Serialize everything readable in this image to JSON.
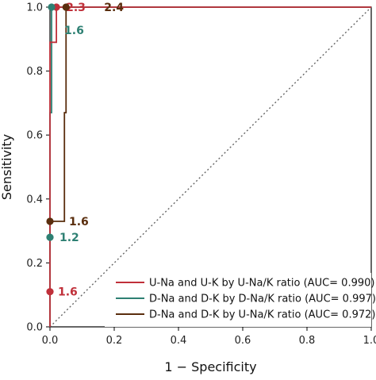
{
  "chart_data": {
    "type": "line",
    "xlabel": "1 − Specificity",
    "ylabel": "Sensitivity",
    "xlim": [
      0,
      1
    ],
    "ylim": [
      0,
      1
    ],
    "x_ticks": [
      "0.0",
      "0.2",
      "0.4",
      "0.6",
      "0.8",
      "1.0"
    ],
    "y_ticks": [
      "0.0",
      "0.2",
      "0.4",
      "0.6",
      "0.8",
      "1.0"
    ],
    "reference_line": {
      "style": "dotted",
      "from": [
        0,
        0
      ],
      "to": [
        1,
        1
      ]
    },
    "legend_position": "bottom-right",
    "series": [
      {
        "name": "U-Na and U-K by U-Na/K ratio (AUC= 0.990)",
        "color": "#c0303a",
        "points": [
          [
            0,
            0
          ],
          [
            0,
            0.11
          ],
          [
            0,
            0.89
          ],
          [
            0.02,
            0.89
          ],
          [
            0.02,
            1.0
          ],
          [
            1.0,
            1.0
          ]
        ],
        "cutoffs": [
          {
            "x": 0.0,
            "y": 0.11,
            "label": "1.6"
          },
          {
            "x": 0.02,
            "y": 1.0,
            "label": "2.3"
          }
        ]
      },
      {
        "name": "D-Na and D-K by D-Na/K ratio (AUC= 0.997)",
        "color": "#2e8073",
        "points": [
          [
            0,
            0
          ],
          [
            0,
            0.28
          ],
          [
            0,
            0.67
          ],
          [
            0.005,
            0.67
          ],
          [
            0.005,
            1.0
          ],
          [
            1.0,
            1.0
          ]
        ],
        "cutoffs": [
          {
            "x": 0.0,
            "y": 0.28,
            "label": "1.2"
          },
          {
            "x": 0.005,
            "y": 1.0,
            "label": "1.6"
          }
        ]
      },
      {
        "name": "D-Na and D-K by U-Na/K ratio (AUC= 0.972)",
        "color": "#5a2e0e",
        "points": [
          [
            0,
            0
          ],
          [
            0,
            0.33
          ],
          [
            0.045,
            0.33
          ],
          [
            0.045,
            0.67
          ],
          [
            0.05,
            0.67
          ],
          [
            0.05,
            1.0
          ],
          [
            1.0,
            1.0
          ]
        ],
        "cutoffs": [
          {
            "x": 0.0,
            "y": 0.33,
            "label": "1.6"
          },
          {
            "x": 0.05,
            "y": 1.0,
            "label": "2.4"
          }
        ]
      }
    ]
  }
}
